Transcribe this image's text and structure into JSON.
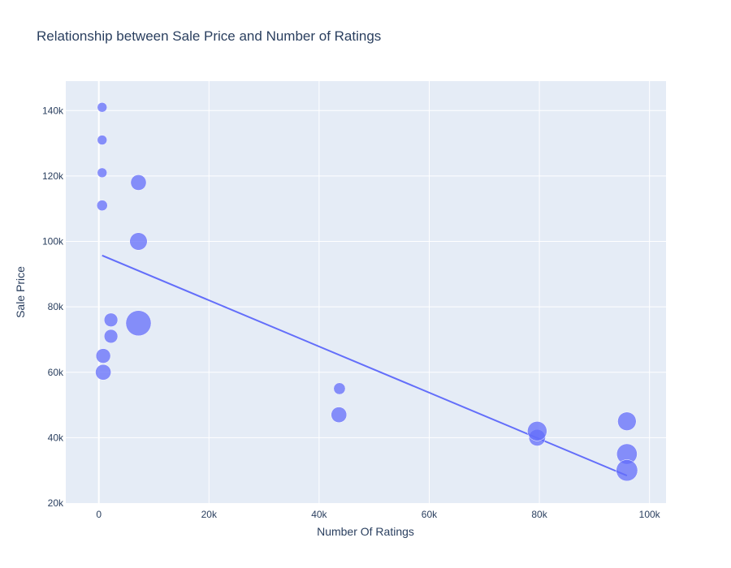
{
  "chart_data": {
    "type": "scatter",
    "title": "Relationship between Sale Price and Number of Ratings",
    "xlabel": "Number Of Ratings",
    "ylabel": "Sale Price",
    "xlim": [
      -6000,
      103000
    ],
    "ylim": [
      20000,
      149000
    ],
    "x_ticks": [
      0,
      20000,
      40000,
      60000,
      80000,
      100000
    ],
    "x_tick_labels": [
      "0",
      "20k",
      "40k",
      "60k",
      "80k",
      "100k"
    ],
    "y_ticks": [
      20000,
      40000,
      60000,
      80000,
      100000,
      120000,
      140000
    ],
    "y_tick_labels": [
      "20k",
      "40k",
      "60k",
      "80k",
      "100k",
      "120k",
      "140k"
    ],
    "grid": true,
    "colors": {
      "plot_bg": "#e5ecf6",
      "grid": "#ffffff",
      "marker": "#636efa",
      "trendline": "#636efa",
      "text": "#2a3f5f"
    },
    "points": [
      {
        "x": 600,
        "y": 141000,
        "size": 1.0
      },
      {
        "x": 600,
        "y": 131000,
        "size": 1.0
      },
      {
        "x": 600,
        "y": 121000,
        "size": 1.0
      },
      {
        "x": 600,
        "y": 111000,
        "size": 1.1
      },
      {
        "x": 7200,
        "y": 118000,
        "size": 1.6
      },
      {
        "x": 7200,
        "y": 100000,
        "size": 1.8
      },
      {
        "x": 2200,
        "y": 76000,
        "size": 1.4
      },
      {
        "x": 2200,
        "y": 71000,
        "size": 1.4
      },
      {
        "x": 7200,
        "y": 75000,
        "size": 2.6
      },
      {
        "x": 800,
        "y": 65000,
        "size": 1.5
      },
      {
        "x": 800,
        "y": 60000,
        "size": 1.6
      },
      {
        "x": 43700,
        "y": 55000,
        "size": 1.2
      },
      {
        "x": 43600,
        "y": 47000,
        "size": 1.6
      },
      {
        "x": 79600,
        "y": 40000,
        "size": 1.7
      },
      {
        "x": 79600,
        "y": 42000,
        "size": 2.0
      },
      {
        "x": 95900,
        "y": 45000,
        "size": 1.9
      },
      {
        "x": 95900,
        "y": 35000,
        "size": 2.1
      },
      {
        "x": 95900,
        "y": 30000,
        "size": 2.2
      }
    ],
    "trendline": {
      "x": [
        600,
        95900
      ],
      "y": [
        95700,
        28400
      ]
    }
  }
}
